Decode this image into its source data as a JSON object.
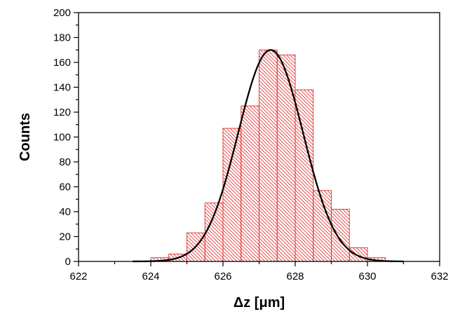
{
  "chart_data": {
    "type": "bar",
    "xlabel": "Δz [μm]",
    "ylabel": "Counts",
    "xlim": [
      622,
      632
    ],
    "ylim": [
      0,
      200
    ],
    "x_ticks": [
      622,
      624,
      626,
      628,
      630,
      632
    ],
    "x_minor_step": 1,
    "y_ticks": [
      0,
      20,
      40,
      60,
      80,
      100,
      120,
      140,
      160,
      180,
      200
    ],
    "y_minor_step": 10,
    "grid": false,
    "bin_width": 0.5,
    "bins": [
      {
        "left": 623.5,
        "count": 0
      },
      {
        "left": 624.0,
        "count": 3
      },
      {
        "left": 624.5,
        "count": 6
      },
      {
        "left": 625.0,
        "count": 23
      },
      {
        "left": 625.5,
        "count": 47
      },
      {
        "left": 626.0,
        "count": 107
      },
      {
        "left": 626.5,
        "count": 125
      },
      {
        "left": 627.0,
        "count": 170
      },
      {
        "left": 627.5,
        "count": 166
      },
      {
        "left": 628.0,
        "count": 138
      },
      {
        "left": 628.5,
        "count": 57
      },
      {
        "left": 629.0,
        "count": 42
      },
      {
        "left": 629.5,
        "count": 11
      },
      {
        "left": 630.0,
        "count": 3
      }
    ],
    "fit": {
      "type": "gaussian",
      "center": 627.32,
      "sigma": 0.9,
      "amplitude": 170,
      "range": [
        623.5,
        631.0
      ]
    },
    "colors": {
      "bar": "#e03030",
      "fit_line": "#000000",
      "axis": "#000000"
    }
  }
}
